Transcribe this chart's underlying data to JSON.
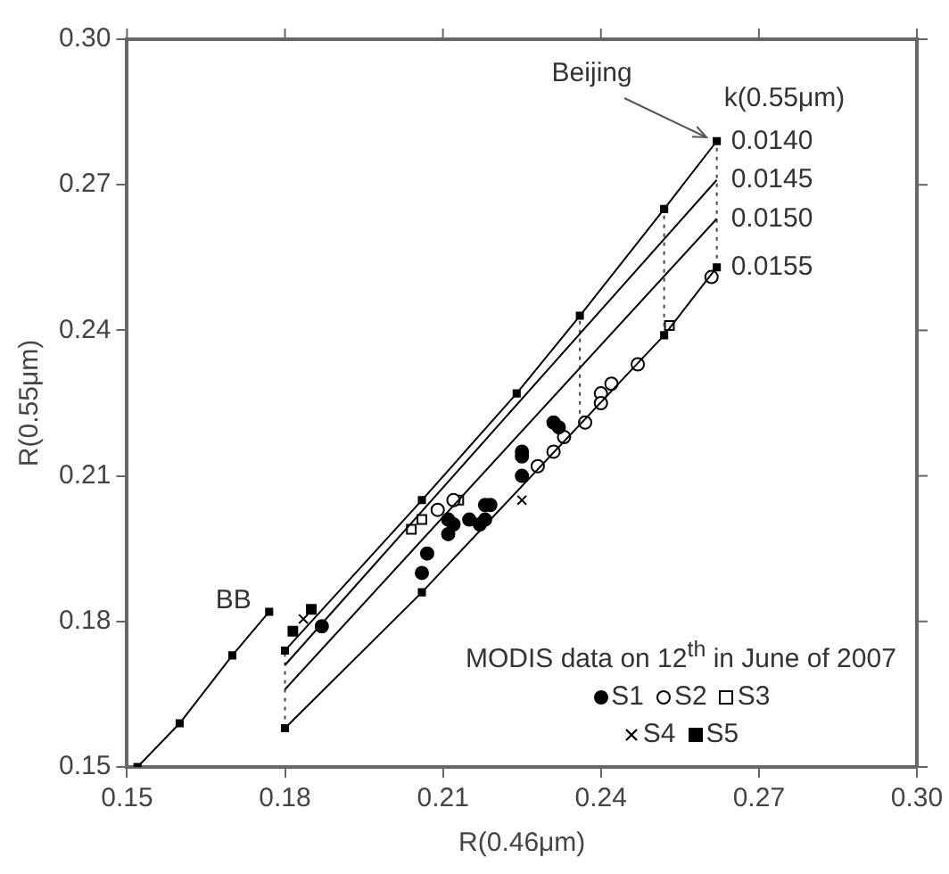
{
  "chart_data": {
    "type": "scatter",
    "xlabel": "R(0.46μm)",
    "ylabel": "R(0.55μm)",
    "xlim": [
      0.15,
      0.3
    ],
    "ylim": [
      0.15,
      0.3
    ],
    "xticks": [
      0.15,
      0.18,
      0.21,
      0.24,
      0.27,
      {
        "value": 0.3,
        "label": "0.30"
      }
    ],
    "yticks": [
      0.15,
      0.18,
      0.21,
      0.24,
      0.27,
      {
        "value": 0.3,
        "label": "0.30"
      }
    ],
    "legend": "bottom right",
    "legend_title": "MODIS data on 12$^{th}$ in June of 2007",
    "annotations": [
      "k(0.55μm)",
      {
        "text": "Beijing",
        "x": 0.262,
        "y": 0.279
      }
    ],
    "series": [
      {
        "type": "line",
        "name": "0.0140",
        "color": "#000000",
        "marker": "square",
        "x": [
          0.18,
          0.206,
          0.224,
          0.236,
          0.252,
          0.262
        ],
        "values": [
          0.174,
          0.205,
          0.227,
          0.243,
          0.265,
          0.279
        ]
      },
      {
        "type": "line",
        "name": "0.0145",
        "color": "#000000",
        "marker": "none",
        "x": [
          0.18,
          0.262
        ],
        "values": [
          0.171,
          0.271
        ]
      },
      {
        "type": "line",
        "name": "0.0150",
        "color": "#000000",
        "marker": "none",
        "x": [
          0.18,
          0.262
        ],
        "values": [
          0.166,
          0.263
        ]
      },
      {
        "type": "line",
        "name": "0.0155",
        "color": "#000000",
        "marker": "square",
        "x": [
          0.18,
          0.206,
          0.252,
          0.262
        ],
        "values": [
          0.158,
          0.186,
          0.239,
          0.253
        ]
      },
      {
        "type": "line",
        "name": "BB",
        "color": "#000000",
        "marker": "square",
        "x": [
          0.152,
          0.16,
          0.17,
          0.177
        ],
        "values": [
          0.15,
          0.159,
          0.173,
          0.182
        ]
      },
      {
        "type": "line",
        "color": "#444444",
        "marker": "none",
        "line_style": "dotted",
        "x": [
          0.18,
          0.18
        ],
        "values": [
          0.158,
          0.174
        ]
      },
      {
        "type": "line",
        "color": "#444444",
        "marker": "none",
        "line_style": "dotted",
        "x": [
          0.236,
          0.236
        ],
        "values": [
          0.221,
          0.243
        ]
      },
      {
        "type": "line",
        "color": "#444444",
        "marker": "none",
        "line_style": "dotted",
        "x": [
          0.252,
          0.252
        ],
        "values": [
          0.239,
          0.265
        ]
      },
      {
        "type": "line",
        "color": "#444444",
        "marker": "none",
        "line_style": "dotted",
        "x": [
          0.262,
          0.262
        ],
        "values": [
          0.253,
          0.279
        ]
      },
      {
        "type": "scatter",
        "name": "S1",
        "color": "#000000",
        "marker": "circle",
        "x": [
          0.206,
          0.207,
          0.211,
          0.211,
          0.215,
          0.218,
          0.219,
          0.218,
          0.225,
          0.225,
          0.225,
          0.232,
          0.231,
          0.187,
          0.212,
          0.217
        ],
        "values": [
          0.19,
          0.194,
          0.201,
          0.198,
          0.201,
          0.201,
          0.204,
          0.204,
          0.21,
          0.214,
          0.215,
          0.22,
          0.221,
          0.179,
          0.2,
          0.2
        ]
      },
      {
        "type": "scatter",
        "name": "S2",
        "color": "#ffffff",
        "marker": "circle",
        "x": [
          0.261,
          0.247,
          0.242,
          0.24,
          0.24,
          0.237,
          0.233,
          0.231,
          0.228,
          0.212,
          0.209
        ],
        "values": [
          0.251,
          0.233,
          0.229,
          0.227,
          0.225,
          0.221,
          0.218,
          0.215,
          0.212,
          0.205,
          0.203
        ]
      },
      {
        "type": "scatter",
        "name": "S3",
        "color": "#ffffff",
        "marker": "square",
        "x": [
          0.253,
          0.204,
          0.213,
          0.206
        ],
        "values": [
          0.241,
          0.199,
          0.205,
          0.201
        ]
      },
      {
        "type": "scatter",
        "name": "S4",
        "color": "#000000",
        "marker": "cross",
        "x": [
          0.225,
          0.1835
        ],
        "values": [
          0.205,
          0.1805
        ]
      },
      {
        "type": "scatter",
        "name": "S5",
        "color": "#000000",
        "marker": "square",
        "x": [
          0.1815,
          0.185
        ],
        "values": [
          0.178,
          0.1825
        ]
      }
    ]
  }
}
